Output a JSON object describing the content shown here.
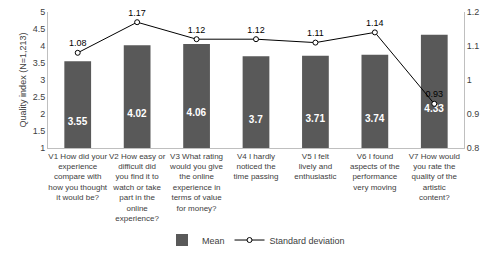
{
  "chart_data": {
    "type": "bar",
    "y_label": "Quality index (N=1,213)",
    "categories": [
      "V1 How did your experience compare with how you thought it would be?",
      "V2 How easy or difficult did you find it to watch or take part in the online experience?",
      "V3 What rating would you give the online experience in terms of value for money?",
      "V4 I hardly noticed the time passing",
      "V5 I felt lively and enthusiastic",
      "V6 I found aspects of the performance very moving",
      "V7 How would you rate the quality of the artistic content?"
    ],
    "series": [
      {
        "name": "Mean",
        "type": "bar",
        "color": "#595959",
        "values": [
          3.55,
          4.02,
          4.06,
          3.7,
          3.71,
          3.74,
          4.33
        ]
      },
      {
        "name": "Standard deviation",
        "type": "line",
        "axis": "y2",
        "color": "#000000",
        "marker": "circle",
        "values": [
          1.08,
          1.17,
          1.12,
          1.12,
          1.11,
          1.14,
          0.93
        ]
      }
    ],
    "ylim": [
      1,
      5
    ],
    "yticks": [
      1,
      1.5,
      2,
      2.5,
      3,
      3.5,
      4,
      4.5,
      5
    ],
    "y2lim": [
      0.8,
      1.2
    ],
    "y2ticks": [
      0.8,
      0.9,
      1,
      1.1,
      1.2
    ],
    "grid": false,
    "legend": "bottom",
    "data_labels": true
  }
}
